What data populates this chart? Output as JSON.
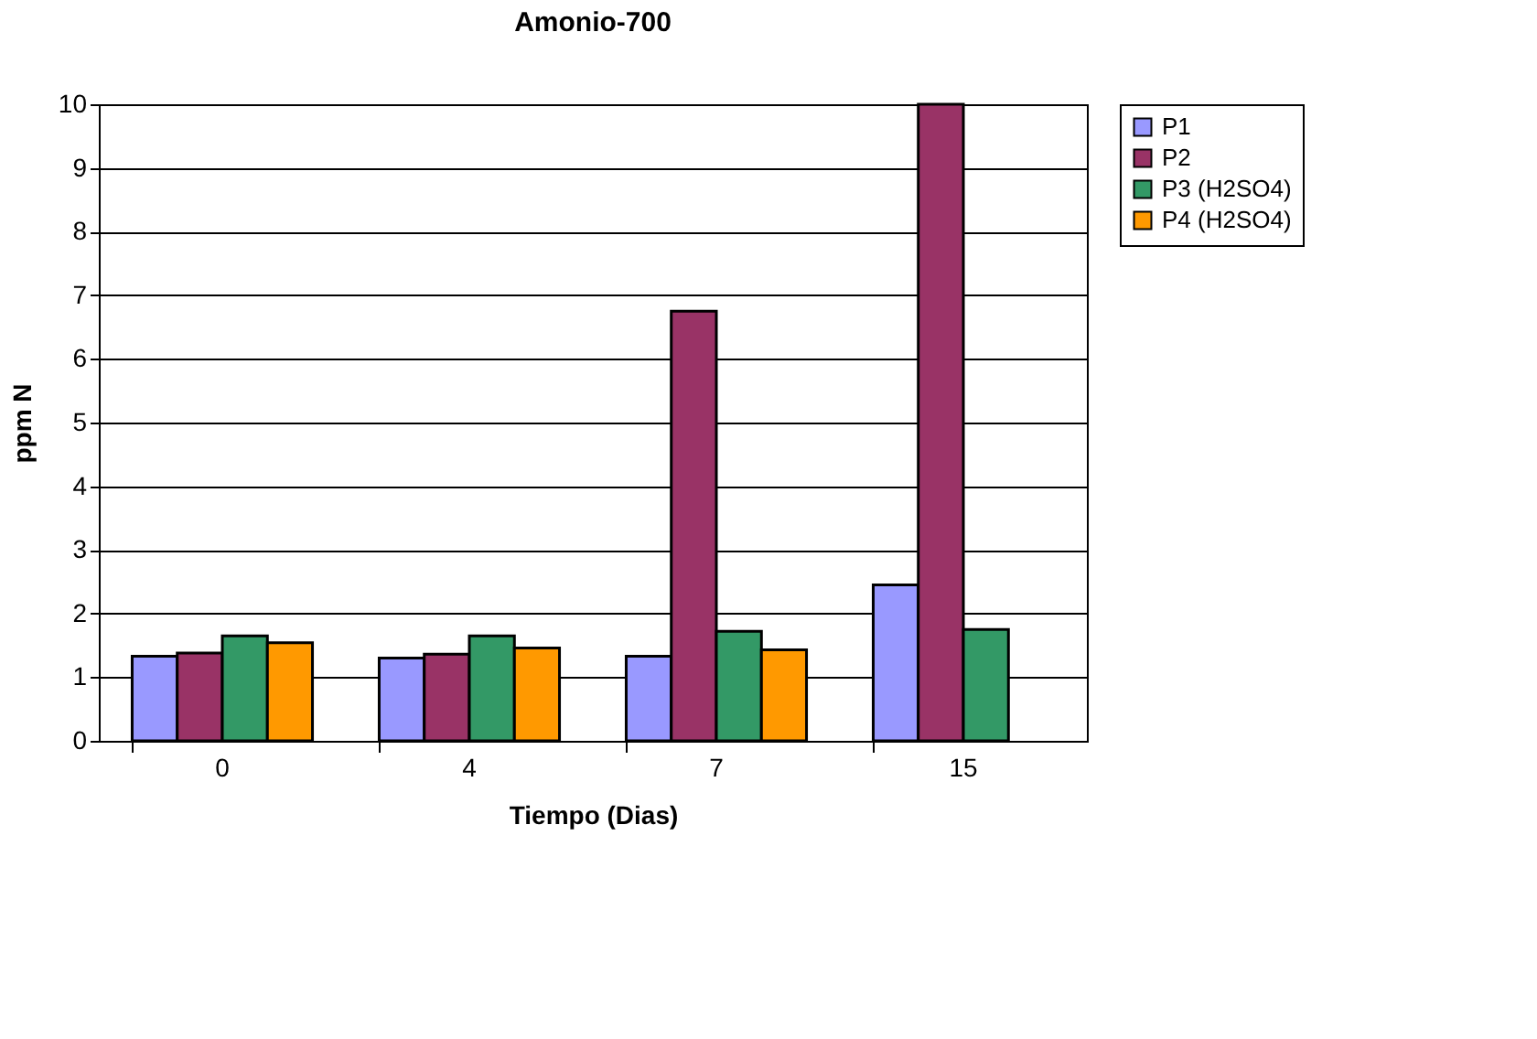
{
  "chart_data": {
    "type": "bar",
    "title": "Amonio-700",
    "xlabel": "Tiempo (Dias)",
    "ylabel": "ppm N",
    "categories": [
      "0",
      "4",
      "7",
      "15"
    ],
    "series": [
      {
        "name": "P1",
        "color": "#9999ff",
        "values": [
          1.33,
          1.3,
          1.33,
          2.45
        ]
      },
      {
        "name": "P2",
        "color": "#993366",
        "values": [
          1.38,
          1.36,
          6.75,
          10
        ]
      },
      {
        "name": "P3 (H2SO4)",
        "color": "#339966",
        "values": [
          1.65,
          1.65,
          1.72,
          1.75
        ]
      },
      {
        "name": "P4 (H2SO4)",
        "color": "#ff9900",
        "values": [
          1.54,
          1.46,
          1.43,
          null
        ]
      }
    ],
    "ylim": [
      0,
      10
    ],
    "yticks": [
      0,
      1,
      2,
      3,
      4,
      5,
      6,
      7,
      8,
      9,
      10
    ],
    "grid": "y",
    "legend": "right"
  }
}
